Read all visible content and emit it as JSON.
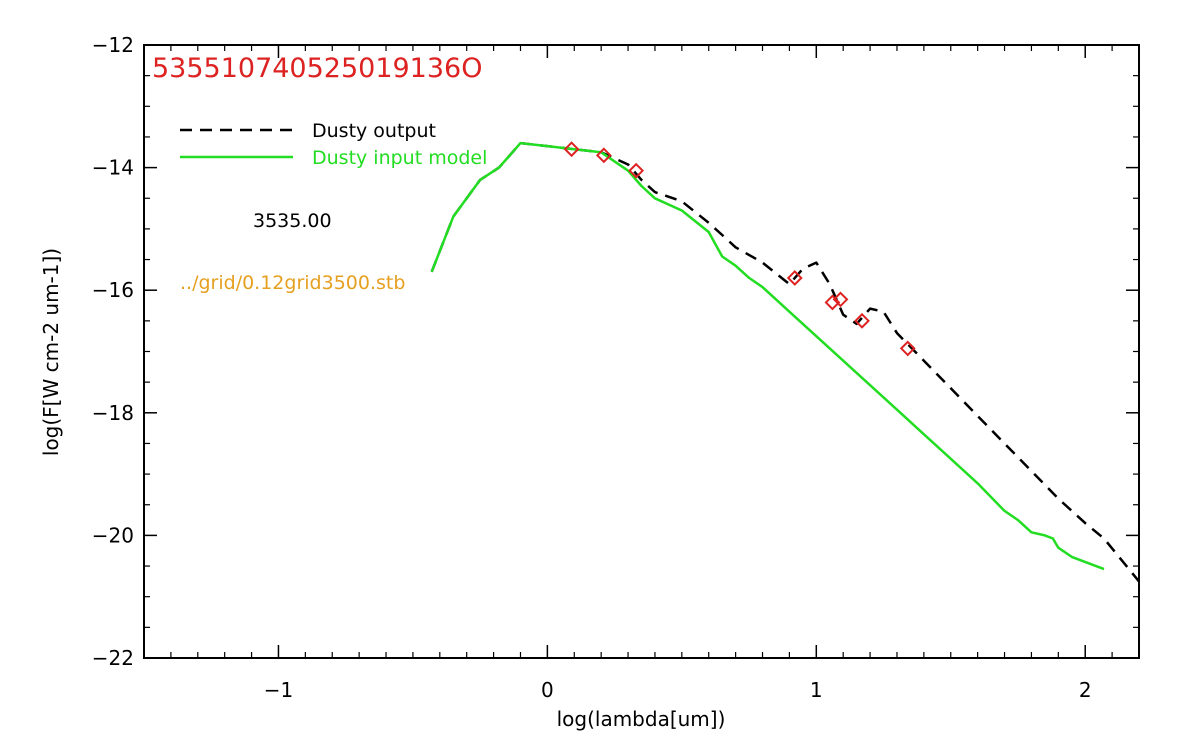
{
  "chart_data": {
    "type": "line",
    "title": "535510740525019136O",
    "xlabel": "log(lambda[um])",
    "ylabel": "log(F[W cm-2 um-1])",
    "xlim": [
      -1.5,
      2.2
    ],
    "ylim": [
      -22,
      -12
    ],
    "xticks": [
      -1,
      0,
      1,
      2
    ],
    "xtick_labels": [
      "−1",
      "0",
      "1",
      "2"
    ],
    "yticks": [
      -22,
      -20,
      -18,
      -16,
      -14,
      -12
    ],
    "ytick_labels": [
      "−22",
      "−20",
      "−18",
      "−16",
      "−14",
      "−12"
    ],
    "grid": false,
    "legend_position": "top-left",
    "annotations": [
      "3535.00",
      "../grid/0.12grid3500.stb"
    ],
    "colors": {
      "title": "#dd2222",
      "output": "#000000",
      "input": "#22dd22",
      "points": "#dd2222",
      "annotation_black": "#000000",
      "annotation_orange": "#e6a020"
    },
    "series": [
      {
        "name": "Dusty output",
        "style": "dashed",
        "x": [
          -0.43,
          -0.35,
          -0.25,
          -0.18,
          -0.1,
          0.0,
          0.1,
          0.2,
          0.3,
          0.35,
          0.4,
          0.5,
          0.6,
          0.65,
          0.7,
          0.8,
          0.9,
          0.95,
          1.0,
          1.05,
          1.1,
          1.15,
          1.2,
          1.25,
          1.3,
          1.4,
          1.5,
          1.6,
          1.7,
          1.8,
          1.9,
          2.0,
          2.07,
          2.2
        ],
        "y": [
          -15.7,
          -14.8,
          -14.2,
          -14.0,
          -13.6,
          -13.65,
          -13.7,
          -13.75,
          -13.95,
          -14.2,
          -14.4,
          -14.55,
          -14.9,
          -15.1,
          -15.3,
          -15.55,
          -15.9,
          -15.65,
          -15.55,
          -15.9,
          -16.4,
          -16.55,
          -16.3,
          -16.35,
          -16.7,
          -17.15,
          -17.6,
          -18.05,
          -18.5,
          -18.95,
          -19.4,
          -19.8,
          -20.05,
          -20.75
        ]
      },
      {
        "name": "Dusty input model",
        "style": "solid",
        "x": [
          -0.43,
          -0.35,
          -0.25,
          -0.18,
          -0.1,
          0.0,
          0.1,
          0.2,
          0.3,
          0.35,
          0.4,
          0.5,
          0.6,
          0.65,
          0.7,
          0.75,
          0.8,
          0.9,
          1.0,
          1.1,
          1.2,
          1.3,
          1.4,
          1.5,
          1.6,
          1.7,
          1.75,
          1.8,
          1.85,
          1.88,
          1.9,
          1.95,
          2.07
        ],
        "y": [
          -15.7,
          -14.8,
          -14.2,
          -14.0,
          -13.6,
          -13.65,
          -13.7,
          -13.75,
          -14.05,
          -14.3,
          -14.5,
          -14.7,
          -15.05,
          -15.45,
          -15.6,
          -15.8,
          -15.95,
          -16.35,
          -16.75,
          -17.15,
          -17.55,
          -17.95,
          -18.35,
          -18.75,
          -19.15,
          -19.6,
          -19.75,
          -19.95,
          -20.0,
          -20.05,
          -20.2,
          -20.35,
          -20.55
        ]
      },
      {
        "name": "",
        "style": "diamond",
        "x": [
          0.09,
          0.21,
          0.33,
          0.92,
          1.06,
          1.09,
          1.17,
          1.34
        ],
        "y": [
          -13.7,
          -13.8,
          -14.05,
          -15.8,
          -16.2,
          -16.15,
          -16.5,
          -16.95
        ]
      }
    ]
  }
}
